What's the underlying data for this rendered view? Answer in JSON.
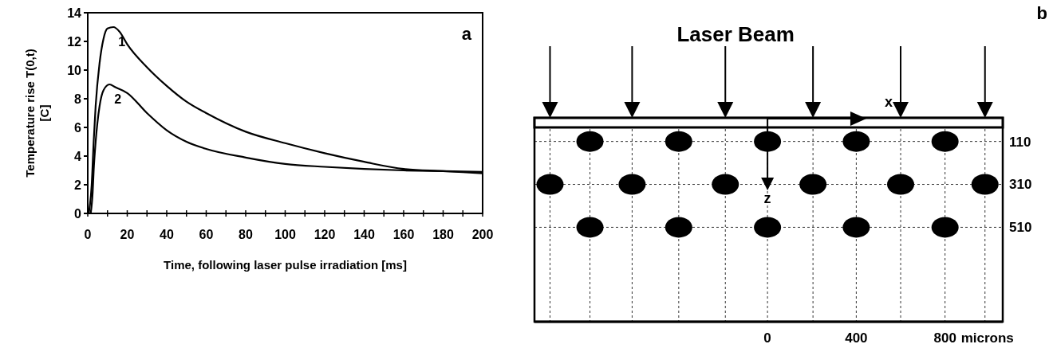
{
  "chart_data": [
    {
      "type": "line",
      "ylabel": "Temperature rise T(0,t)\n[C]",
      "xlabel": "Time, following laser pulse irradiation [ms]",
      "annotations": [
        "a"
      ],
      "xlim": [
        0,
        200
      ],
      "ylim": [
        0,
        14
      ],
      "xticks": [
        0,
        {
          "value": 10,
          "label": null
        },
        20,
        {
          "value": 30,
          "label": null
        },
        40,
        {
          "value": 50,
          "label": null
        },
        60,
        {
          "value": 70,
          "label": null
        },
        80,
        {
          "value": 90,
          "label": null
        },
        100,
        {
          "value": 110,
          "label": null
        },
        120,
        {
          "value": 130,
          "label": null
        },
        140,
        {
          "value": 150,
          "label": null
        },
        160,
        {
          "value": 170,
          "label": null
        },
        180,
        {
          "value": 190,
          "label": null
        },
        200
      ],
      "yticks": [
        0,
        2,
        4,
        6,
        8,
        10,
        12,
        14
      ],
      "marker": "none",
      "line_style": "solid",
      "series": [
        {
          "name": "1",
          "color": "#000000",
          "x": [
            0.5,
            2,
            3,
            4,
            6,
            8,
            10,
            13,
            16,
            20,
            30,
            40,
            50,
            60,
            80,
            100,
            120,
            140,
            160,
            180,
            200
          ],
          "values": [
            0,
            2,
            5,
            7.5,
            10.5,
            12.2,
            12.9,
            13,
            12.7,
            11.8,
            10.2,
            8.9,
            7.8,
            7,
            5.7,
            4.9,
            4.2,
            3.6,
            3.1,
            2.95,
            2.8
          ]
        },
        {
          "name": "2",
          "color": "#000000",
          "x": [
            1.5,
            2.5,
            3,
            4,
            6,
            8,
            11,
            14,
            20,
            30,
            40,
            50,
            60,
            80,
            100,
            120,
            140,
            160,
            180,
            200
          ],
          "values": [
            0,
            1.5,
            3,
            5,
            7.5,
            8.6,
            9,
            8.8,
            8.4,
            7,
            5.8,
            5,
            4.5,
            3.9,
            3.45,
            3.25,
            3.1,
            3,
            2.95,
            2.9
          ]
        }
      ]
    },
    {
      "type": "scatter",
      "title": "Laser Beam",
      "xlabel": "microns",
      "annotations": [
        "b",
        "x",
        "z"
      ],
      "xlim": [
        -1050,
        1060
      ],
      "ylim": [
        950,
        0
      ],
      "xticks": [
        0,
        400,
        800
      ],
      "yticks": [
        110,
        310,
        510
      ],
      "marker": "circle",
      "grid": true,
      "series": [
        {
          "color": "#000000",
          "x": [
            -800,
            -400,
            0,
            400,
            800,
            -980,
            -610,
            -190,
            205,
            600,
            980,
            -800,
            -400,
            0,
            400,
            800
          ],
          "values": [
            110,
            110,
            110,
            110,
            110,
            310,
            310,
            310,
            310,
            310,
            310,
            510,
            510,
            510,
            510,
            510
          ]
        }
      ]
    }
  ]
}
